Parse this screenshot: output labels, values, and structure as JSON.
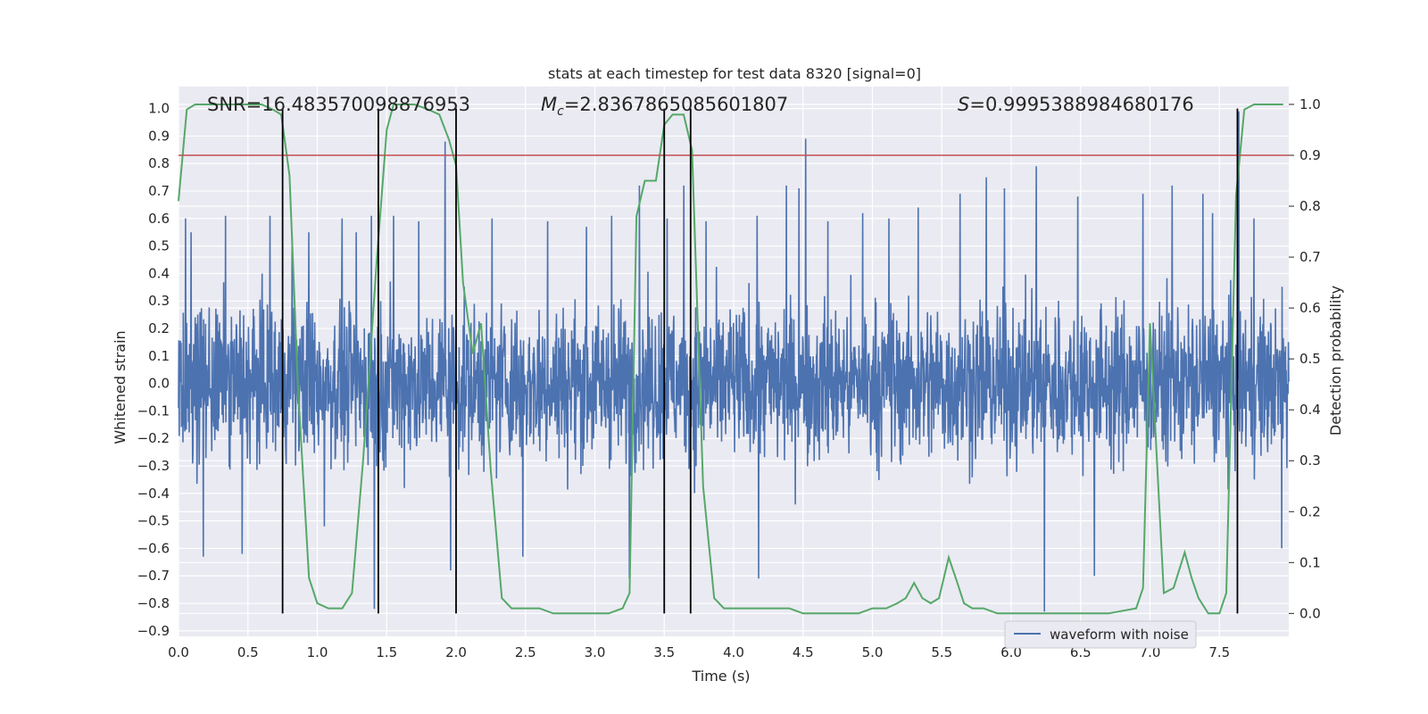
{
  "chart_data": {
    "type": "line",
    "title": "stats at each timestep for test data 8320 [signal=0]",
    "xlabel": "Time (s)",
    "ylabel": "Whitened strain",
    "y2label": "Detection probability",
    "xlim": [
      0.0,
      8.0
    ],
    "ylim": [
      -0.92,
      1.08
    ],
    "y2lim": [
      -0.045,
      1.035
    ],
    "xticks": [
      0.0,
      0.5,
      1.0,
      1.5,
      2.0,
      2.5,
      3.0,
      3.5,
      4.0,
      4.5,
      5.0,
      5.5,
      6.0,
      6.5,
      7.0,
      7.5
    ],
    "yticks": [
      -0.9,
      -0.8,
      -0.7,
      -0.6,
      -0.5,
      -0.4,
      -0.3,
      -0.2,
      -0.1,
      0.0,
      0.1,
      0.2,
      0.3,
      0.4,
      0.5,
      0.6,
      0.7,
      0.8,
      0.9,
      1.0
    ],
    "y2ticks": [
      0.0,
      0.1,
      0.2,
      0.3,
      0.4,
      0.5,
      0.6,
      0.7,
      0.8,
      0.9,
      1.0
    ],
    "grid": true,
    "legend_position": "bottom-right",
    "annotations": {
      "snr": "SNR=16.483570098876953",
      "mc_symbol": "M",
      "mc_sub": "c",
      "mc_value": "=2.8367865085601807",
      "s_symbol": "S",
      "s_value": "=0.9995388984680176"
    },
    "series": [
      {
        "name": "waveform with noise",
        "axis": "left",
        "color": "#4c72b0",
        "description_values": "dense noise samples, bulk roughly within -0.45..0.45, spikes up to ~1.0 and down to ~-0.83",
        "spikes": [
          [
            0.05,
            0.6
          ],
          [
            0.09,
            0.55
          ],
          [
            0.18,
            -0.63
          ],
          [
            0.34,
            0.61
          ],
          [
            0.46,
            -0.62
          ],
          [
            0.66,
            0.61
          ],
          [
            0.82,
            0.54
          ],
          [
            0.94,
            0.55
          ],
          [
            1.05,
            -0.52
          ],
          [
            1.18,
            0.6
          ],
          [
            1.28,
            0.55
          ],
          [
            1.39,
            0.61
          ],
          [
            1.41,
            -0.82
          ],
          [
            1.55,
            0.61
          ],
          [
            1.73,
            0.59
          ],
          [
            1.92,
            0.88
          ],
          [
            1.96,
            -0.68
          ],
          [
            2.26,
            0.6
          ],
          [
            2.48,
            -0.63
          ],
          [
            2.66,
            0.59
          ],
          [
            2.94,
            0.57
          ],
          [
            3.12,
            0.61
          ],
          [
            3.25,
            -0.71
          ],
          [
            3.32,
            0.72
          ],
          [
            3.52,
            0.6
          ],
          [
            3.64,
            0.72
          ],
          [
            3.8,
            0.59
          ],
          [
            4.17,
            0.61
          ],
          [
            4.18,
            -0.71
          ],
          [
            4.38,
            0.72
          ],
          [
            4.47,
            0.71
          ],
          [
            4.52,
            0.89
          ],
          [
            4.68,
            0.59
          ],
          [
            4.93,
            0.62
          ],
          [
            5.12,
            0.6
          ],
          [
            5.33,
            0.64
          ],
          [
            5.63,
            0.69
          ],
          [
            5.82,
            0.75
          ],
          [
            5.95,
            0.71
          ],
          [
            6.18,
            0.79
          ],
          [
            6.24,
            -0.83
          ],
          [
            6.48,
            0.68
          ],
          [
            6.6,
            -0.7
          ],
          [
            6.95,
            0.69
          ],
          [
            7.16,
            0.72
          ],
          [
            7.38,
            0.69
          ],
          [
            7.45,
            0.62
          ],
          [
            7.64,
            0.99
          ],
          [
            7.75,
            0.6
          ],
          [
            7.95,
            -0.6
          ]
        ]
      },
      {
        "name": "detection probability",
        "axis": "right",
        "color": "#55a868",
        "x": [
          0.0,
          0.06,
          0.12,
          0.2,
          0.3,
          0.4,
          0.5,
          0.6,
          0.68,
          0.74,
          0.8,
          0.86,
          0.94,
          1.0,
          1.08,
          1.18,
          1.25,
          1.33,
          1.43,
          1.5,
          1.55,
          1.62,
          1.7,
          1.8,
          1.88,
          1.95,
          2.0,
          2.05,
          2.12,
          2.18,
          2.25,
          2.33,
          2.4,
          2.5,
          2.6,
          2.7,
          2.8,
          2.9,
          3.0,
          3.1,
          3.2,
          3.25,
          3.3,
          3.36,
          3.44,
          3.5,
          3.56,
          3.64,
          3.7,
          3.78,
          3.86,
          3.93,
          4.0,
          4.1,
          4.2,
          4.3,
          4.4,
          4.5,
          4.6,
          4.7,
          4.8,
          4.9,
          5.0,
          5.1,
          5.18,
          5.24,
          5.3,
          5.36,
          5.42,
          5.48,
          5.55,
          5.6,
          5.66,
          5.72,
          5.8,
          5.9,
          6.0,
          6.1,
          6.3,
          6.5,
          6.7,
          6.9,
          6.95,
          7.0,
          7.05,
          7.1,
          7.17,
          7.25,
          7.3,
          7.35,
          7.42,
          7.5,
          7.55,
          7.62,
          7.68,
          7.75,
          7.85,
          7.96
        ],
        "values": [
          0.81,
          0.99,
          1.0,
          1.0,
          1.0,
          1.0,
          1.0,
          1.0,
          0.99,
          0.98,
          0.86,
          0.45,
          0.07,
          0.02,
          0.01,
          0.01,
          0.04,
          0.3,
          0.7,
          0.95,
          1.0,
          1.0,
          1.0,
          0.99,
          0.98,
          0.93,
          0.88,
          0.65,
          0.51,
          0.57,
          0.28,
          0.03,
          0.01,
          0.01,
          0.01,
          0.0,
          0.0,
          0.0,
          0.0,
          0.0,
          0.01,
          0.04,
          0.78,
          0.85,
          0.85,
          0.96,
          0.98,
          0.98,
          0.91,
          0.25,
          0.03,
          0.01,
          0.01,
          0.01,
          0.01,
          0.01,
          0.01,
          0.0,
          0.0,
          0.0,
          0.0,
          0.0,
          0.01,
          0.01,
          0.02,
          0.03,
          0.06,
          0.03,
          0.02,
          0.03,
          0.11,
          0.07,
          0.02,
          0.01,
          0.01,
          0.0,
          0.0,
          0.0,
          0.0,
          0.0,
          0.0,
          0.01,
          0.05,
          0.57,
          0.3,
          0.04,
          0.05,
          0.12,
          0.07,
          0.03,
          0.0,
          0.0,
          0.04,
          0.82,
          0.99,
          1.0,
          1.0,
          1.0
        ]
      }
    ],
    "threshold": {
      "axis": "right",
      "value": 0.9,
      "color": "#c44e52"
    },
    "event_lines_x": [
      0.75,
      1.44,
      2.0,
      3.5,
      3.69,
      7.63
    ],
    "event_lines_bottom_y2": 0.0,
    "event_lines_top_y": 1.0,
    "plot_background": "#eaeaf2",
    "grid_color": "#ffffff"
  },
  "legend": {
    "label": "waveform with noise"
  }
}
